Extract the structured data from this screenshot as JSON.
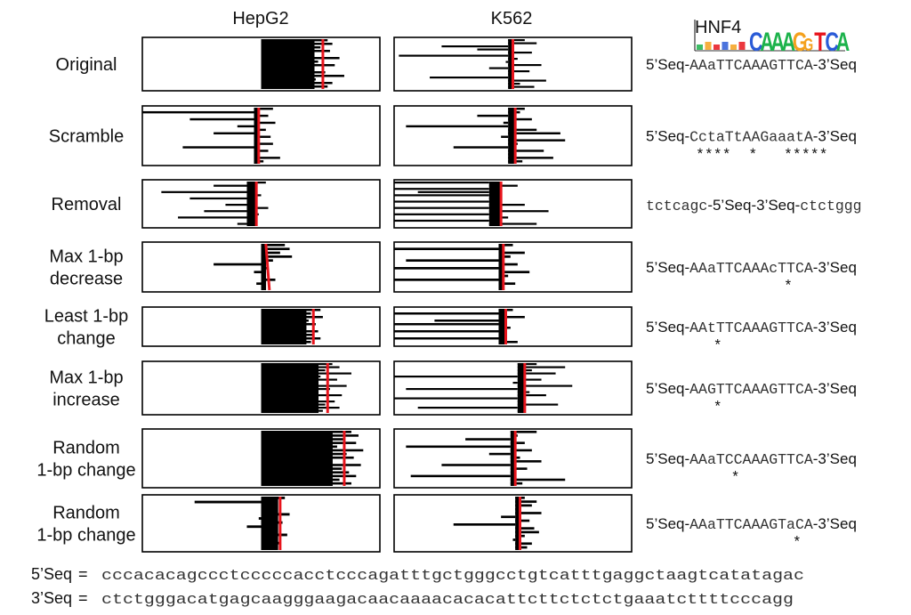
{
  "columns": {
    "hepg2": "HepG2",
    "k562": "K562",
    "motif": "HNF4",
    "logo_letters": [
      "C",
      "A",
      "A",
      "A",
      "G",
      "G",
      "T",
      "C",
      "A"
    ]
  },
  "rows": [
    {
      "label_lines": [
        "Original"
      ],
      "seq": [
        {
          "t": "5’Seq-",
          "style": "sans"
        },
        {
          "t": "AAaTTCAAAGTTCA",
          "style": "mono"
        },
        {
          "t": "-3’Seq",
          "style": "sans"
        }
      ],
      "stars": "",
      "hepg2": {
        "mean": 0.76,
        "base": 0.5,
        "bars": [
          0.78,
          0.8,
          0.75,
          0.79,
          0.72,
          0.83,
          0.74,
          0.81,
          0.69,
          0.77,
          0.85,
          0.73,
          0.8,
          0.78
        ]
      },
      "k562": {
        "mean": 0.5,
        "base": 0.48,
        "bars": [
          0.55,
          0.6,
          0.2,
          0.35,
          0.58,
          0.02,
          0.52,
          0.47,
          0.62,
          0.4,
          0.57,
          0.5,
          0.15,
          0.64,
          0.53,
          0.59
        ]
      }
    },
    {
      "label_lines": [
        "Scramble"
      ],
      "seq": [
        {
          "t": "5’Seq-",
          "style": "sans"
        },
        {
          "t": "CctaTtAAGaaatA",
          "style": "mono"
        },
        {
          "t": "-3’Seq",
          "style": "sans"
        }
      ],
      "stars": "****  *   *****",
      "hepg2": {
        "mean": 0.49,
        "base": 0.47,
        "bars": [
          0.55,
          0.0,
          0.53,
          0.2,
          0.56,
          0.4,
          0.52,
          0.3,
          0.54,
          0.49,
          0.55,
          0.17,
          0.53,
          0.48,
          0.58,
          0.51
        ]
      },
      "k562": {
        "mean": 0.51,
        "base": 0.48,
        "bars": [
          0.55,
          0.53,
          0.35,
          0.58,
          0.46,
          0.05,
          0.6,
          0.7,
          0.45,
          0.72,
          0.52,
          0.25,
          0.63,
          0.49,
          0.67,
          0.54
        ]
      }
    },
    {
      "label_lines": [
        "Removal"
      ],
      "seq": [
        {
          "t": "tctcagc",
          "style": "mono"
        },
        {
          "t": "-5’Seq-3’Seq-",
          "style": "sans"
        },
        {
          "t": "ctctggg",
          "style": "mono"
        }
      ],
      "stars": "",
      "hepg2": {
        "mean": 0.48,
        "base": 0.44,
        "bars": [
          0.52,
          0.3,
          0.45,
          0.08,
          0.5,
          0.2,
          0.48,
          0.35,
          0.53,
          0.26,
          0.49,
          0.15,
          0.47,
          0.4
        ]
      },
      "k562": {
        "mean": 0.45,
        "base": 0.4,
        "bars": [
          0.0,
          0.52,
          0.0,
          0.1,
          0.0,
          0.45,
          0.0,
          0.55,
          0.0,
          0.65,
          0.0,
          0.48,
          0.0,
          0.6
        ]
      }
    },
    {
      "label_lines": [
        "Max 1-bp",
        "decrease"
      ],
      "seq": [
        {
          "t": "5’Seq-",
          "style": "sans"
        },
        {
          "t": "AAaTTCAAAcTTCA",
          "style": "mono"
        },
        {
          "t": "-3’Seq",
          "style": "sans"
        }
      ],
      "stars": "          *",
      "hepg2": {
        "mean": 0.52,
        "base": 0.5,
        "bars": [
          0.6,
          0.62,
          0.58,
          0.63,
          0.55,
          0.3,
          0.53,
          0.47,
          0.51,
          0.56,
          0.48,
          0.52
        ]
      },
      "k562": {
        "mean": 0.46,
        "base": 0.44,
        "bars": [
          0.5,
          0.0,
          0.55,
          0.49,
          0.05,
          0.52,
          0.0,
          0.57,
          0.48,
          0.0,
          0.51,
          0.46
        ]
      }
    },
    {
      "label_lines": [
        "Least 1-bp",
        "change"
      ],
      "seq": [
        {
          "t": "5’Seq-",
          "style": "sans"
        },
        {
          "t": "AAtTTCAAAGTTCA",
          "style": "mono"
        },
        {
          "t": "-3’Seq",
          "style": "sans"
        }
      ],
      "stars": "  *",
      "hepg2": {
        "mean": 0.72,
        "base": 0.5,
        "bars": [
          0.75,
          0.71,
          0.76,
          0.7,
          0.73,
          0.69,
          0.74,
          0.72,
          0.75,
          0.71
        ]
      },
      "k562": {
        "mean": 0.47,
        "base": 0.44,
        "bars": [
          0.5,
          0.0,
          0.55,
          0.17,
          0.0,
          0.49,
          0.0,
          0.45,
          0.0,
          0.52
        ]
      }
    },
    {
      "label_lines": [
        "Max 1-bp",
        "increase"
      ],
      "seq": [
        {
          "t": "5’Seq-",
          "style": "sans"
        },
        {
          "t": "AAGTTCAAAGTTCA",
          "style": "mono"
        },
        {
          "t": "-3’Seq",
          "style": "sans"
        }
      ],
      "stars": "  *",
      "hepg2": {
        "mean": 0.78,
        "base": 0.5,
        "bars": [
          0.8,
          0.83,
          0.77,
          0.88,
          0.75,
          0.82,
          0.72,
          0.86,
          0.79,
          0.74,
          0.84,
          0.7,
          0.81,
          0.77,
          0.83,
          0.76
        ]
      },
      "k562": {
        "mean": 0.55,
        "base": 0.52,
        "bars": [
          0.6,
          0.72,
          0.58,
          0.68,
          0.0,
          0.62,
          0.5,
          0.75,
          0.05,
          0.57,
          0.64,
          0.0,
          0.55,
          0.69,
          0.1,
          0.53
        ]
      }
    },
    {
      "label_lines": [
        "Random",
        "1-bp change"
      ],
      "seq": [
        {
          "t": "5’Seq-",
          "style": "sans"
        },
        {
          "t": "AAaTCCAAAGTTCA",
          "style": "mono"
        },
        {
          "t": "-3’Seq",
          "style": "sans"
        }
      ],
      "stars": "    *",
      "hepg2": {
        "mean": 0.85,
        "base": 0.5,
        "bars": [
          0.88,
          0.91,
          0.85,
          0.9,
          0.82,
          0.93,
          0.86,
          0.89,
          0.8,
          0.92,
          0.84,
          0.87,
          0.9,
          0.83,
          0.88
        ]
      },
      "k562": {
        "mean": 0.51,
        "base": 0.49,
        "bars": [
          0.6,
          0.52,
          0.3,
          0.55,
          0.05,
          0.58,
          0.4,
          0.53,
          0.62,
          0.2,
          0.56,
          0.5,
          0.07,
          0.72,
          0.54
        ]
      }
    },
    {
      "label_lines": [
        "Random",
        "1-bp change"
      ],
      "seq": [
        {
          "t": "5’Seq-",
          "style": "sans"
        },
        {
          "t": "AAaTTCAAAGTaCA",
          "style": "mono"
        },
        {
          "t": "-3’Seq",
          "style": "sans"
        }
      ],
      "stars": "           *",
      "hepg2": {
        "mean": 0.58,
        "base": 0.5,
        "bars": [
          0.6,
          0.22,
          0.57,
          0.53,
          0.62,
          0.49,
          0.59,
          0.44,
          0.56,
          0.61,
          0.52,
          0.58,
          0.55
        ]
      },
      "k562": {
        "mean": 0.53,
        "base": 0.51,
        "bars": [
          0.55,
          0.6,
          0.58,
          0.52,
          0.62,
          0.45,
          0.57,
          0.25,
          0.59,
          0.61,
          0.55,
          0.5,
          0.58,
          0.56
        ]
      }
    }
  ],
  "footer": {
    "seq5_label": "5’Seq",
    "seq5": "cccacacagccctcccccacctcccagatttgctgggcctgtcatttgaggctaagtcatatagac",
    "seq3_label": "3’Seq",
    "seq3": "ctctgggacatgagcaagggaagacaacaaaacacacattcttctctctgaaatcttttcccagg",
    "equals": "="
  },
  "colors": {
    "bar": "#000000",
    "mean_line": "#e8141c",
    "box": "#000000",
    "text": "#111111",
    "seq_text": "#333333",
    "logo": {
      "A": "#1cb24b",
      "C": "#2a5bd7",
      "G": "#f4a11d",
      "T": "#e8141c"
    }
  }
}
